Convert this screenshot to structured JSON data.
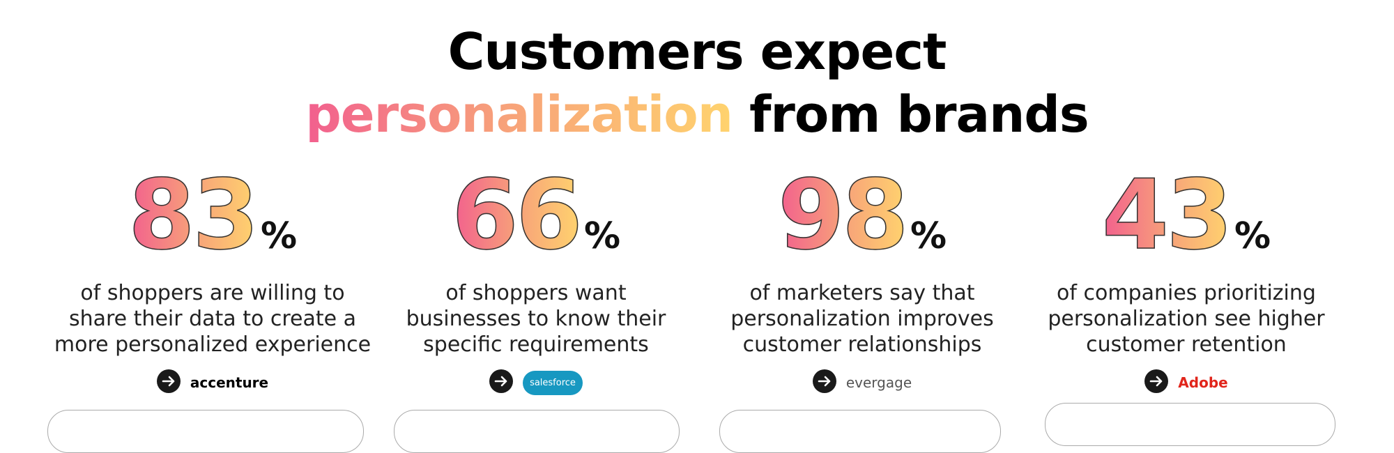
{
  "header": {
    "title_line1": "Customers expect",
    "highlight": "personalization",
    "title_rest": "from brands"
  },
  "stats": [
    {
      "number": "83",
      "unit": "%",
      "lines": [
        "of shoppers are willing to",
        "share their data to create a",
        "more personalized experience"
      ],
      "source": "accenture"
    },
    {
      "number": "66",
      "unit": "%",
      "lines": [
        "of shoppers want",
        "businesses to know their",
        "specific requirements"
      ],
      "source": "salesforce"
    },
    {
      "number": "98",
      "unit": "%",
      "lines": [
        "of marketers say that",
        "personalization improves",
        "customer relationships"
      ],
      "source": "evergage"
    },
    {
      "number": "43",
      "unit": "%",
      "lines": [
        "of companies prioritizing",
        "personalization see higher",
        "customer retention"
      ],
      "source": "Adobe"
    }
  ]
}
